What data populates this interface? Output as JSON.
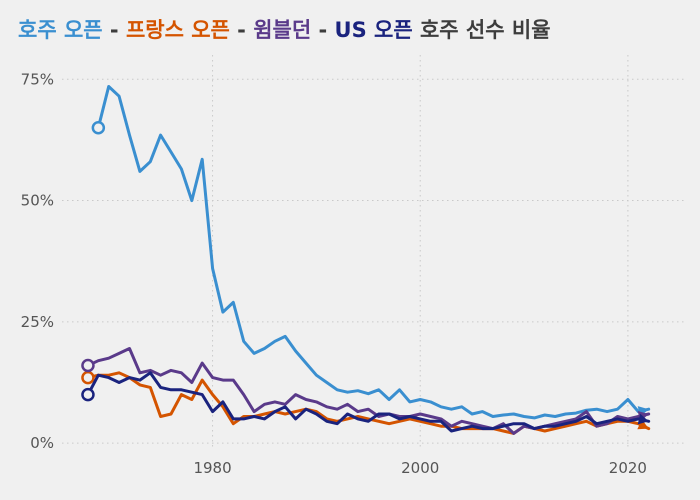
{
  "chart_data": {
    "type": "line",
    "title_parts": [
      {
        "text": "호주 오픈",
        "color": "#3a8fd0"
      },
      {
        "text": " - ",
        "color": "#3d3d3d"
      },
      {
        "text": "프랑스 오픈",
        "color": "#d45400"
      },
      {
        "text": " - ",
        "color": "#3d3d3d"
      },
      {
        "text": "윔블던",
        "color": "#5a3a8a"
      },
      {
        "text": " - ",
        "color": "#3d3d3d"
      },
      {
        "text": "US 오픈",
        "color": "#1a237e"
      },
      {
        "text": " 호주 선수 비율",
        "color": "#3d3d3d"
      }
    ],
    "xlim": [
      1965.5,
      2025.5
    ],
    "ylim": [
      -0.01,
      0.8
    ],
    "x_ticks": [
      {
        "value": 1980,
        "label": "1980"
      },
      {
        "value": 2000,
        "label": "2000"
      },
      {
        "value": 2020,
        "label": "2020"
      }
    ],
    "y_ticks": [
      {
        "value": 0,
        "label": "0%"
      },
      {
        "value": 0.25,
        "label": "25%"
      },
      {
        "value": 0.5,
        "label": "50%"
      },
      {
        "value": 0.75,
        "label": "75%"
      }
    ],
    "grid": true,
    "series": [
      {
        "color": "#3a8fd0",
        "x": [
          1969,
          1970,
          1971,
          1972,
          1973,
          1974,
          1975,
          1976,
          1977,
          1978,
          1979,
          1980,
          1981,
          1982,
          1983,
          1984,
          1985,
          1986,
          1987,
          1988,
          1989,
          1990,
          1991,
          1992,
          1993,
          1994,
          1995,
          1996,
          1997,
          1998,
          1999,
          2000,
          2001,
          2002,
          2003,
          2004,
          2005,
          2006,
          2007,
          2008,
          2009,
          2010,
          2011,
          2012,
          2013,
          2014,
          2015,
          2016,
          2017,
          2018,
          2019,
          2020,
          2021,
          2022
        ],
        "values": [
          0.65,
          0.735,
          0.715,
          0.635,
          0.56,
          0.58,
          0.635,
          0.6,
          0.565,
          0.5,
          0.585,
          0.36,
          0.27,
          0.29,
          0.21,
          0.185,
          0.195,
          0.21,
          0.22,
          0.19,
          0.165,
          0.14,
          0.125,
          0.11,
          0.105,
          0.108,
          0.102,
          0.11,
          0.09,
          0.11,
          0.085,
          0.09,
          0.085,
          0.075,
          0.07,
          0.075,
          0.06,
          0.065,
          0.055,
          0.058,
          0.06,
          0.055,
          0.052,
          0.058,
          0.055,
          0.06,
          0.062,
          0.068,
          0.07,
          0.065,
          0.07,
          0.09,
          0.065,
          0.07
        ]
      },
      {
        "color": "#d45400",
        "x": [
          1968,
          1969,
          1970,
          1971,
          1972,
          1973,
          1974,
          1975,
          1976,
          1977,
          1978,
          1979,
          1980,
          1981,
          1982,
          1983,
          1984,
          1985,
          1986,
          1987,
          1988,
          1989,
          1990,
          1991,
          1992,
          1993,
          1994,
          1995,
          1996,
          1997,
          1998,
          1999,
          2000,
          2001,
          2002,
          2003,
          2004,
          2005,
          2006,
          2007,
          2008,
          2009,
          2010,
          2011,
          2012,
          2013,
          2014,
          2015,
          2016,
          2017,
          2018,
          2019,
          2020,
          2021,
          2022
        ],
        "values": [
          0.135,
          0.14,
          0.14,
          0.145,
          0.135,
          0.12,
          0.115,
          0.055,
          0.06,
          0.1,
          0.09,
          0.13,
          0.1,
          0.075,
          0.04,
          0.055,
          0.055,
          0.06,
          0.065,
          0.06,
          0.065,
          0.07,
          0.065,
          0.05,
          0.045,
          0.05,
          0.055,
          0.05,
          0.045,
          0.04,
          0.045,
          0.05,
          0.045,
          0.04,
          0.035,
          0.035,
          0.03,
          0.03,
          0.03,
          0.03,
          0.025,
          0.02,
          0.035,
          0.03,
          0.025,
          0.03,
          0.035,
          0.04,
          0.045,
          0.035,
          0.04,
          0.045,
          0.045,
          0.04,
          0.03
        ]
      },
      {
        "color": "#5a3a8a",
        "x": [
          1968,
          1969,
          1970,
          1971,
          1972,
          1973,
          1974,
          1975,
          1976,
          1977,
          1978,
          1979,
          1980,
          1981,
          1982,
          1983,
          1984,
          1985,
          1986,
          1987,
          1988,
          1989,
          1990,
          1991,
          1992,
          1993,
          1994,
          1995,
          1996,
          1997,
          1998,
          1999,
          2000,
          2001,
          2002,
          2003,
          2004,
          2005,
          2006,
          2007,
          2008,
          2009,
          2010,
          2011,
          2012,
          2013,
          2014,
          2015,
          2016,
          2017,
          2018,
          2019,
          2020,
          2021,
          2022
        ],
        "values": [
          0.16,
          0.17,
          0.175,
          0.185,
          0.195,
          0.145,
          0.15,
          0.14,
          0.15,
          0.145,
          0.125,
          0.165,
          0.135,
          0.13,
          0.13,
          0.1,
          0.065,
          0.08,
          0.085,
          0.08,
          0.1,
          0.09,
          0.085,
          0.075,
          0.07,
          0.08,
          0.065,
          0.07,
          0.055,
          0.06,
          0.055,
          0.055,
          0.06,
          0.055,
          0.05,
          0.035,
          0.045,
          0.04,
          0.035,
          0.03,
          0.04,
          0.02,
          0.035,
          0.03,
          0.035,
          0.04,
          0.045,
          0.05,
          0.065,
          0.035,
          0.04,
          0.055,
          0.05,
          0.055,
          0.06
        ]
      },
      {
        "color": "#1a237e",
        "x": [
          1968,
          1969,
          1970,
          1971,
          1972,
          1973,
          1974,
          1975,
          1976,
          1977,
          1978,
          1979,
          1980,
          1981,
          1982,
          1983,
          1984,
          1985,
          1986,
          1987,
          1988,
          1989,
          1990,
          1991,
          1992,
          1993,
          1994,
          1995,
          1996,
          1997,
          1998,
          1999,
          2000,
          2001,
          2002,
          2003,
          2004,
          2005,
          2006,
          2007,
          2008,
          2009,
          2010,
          2011,
          2012,
          2013,
          2014,
          2015,
          2016,
          2017,
          2018,
          2019,
          2020,
          2021,
          2022
        ],
        "values": [
          0.1,
          0.14,
          0.135,
          0.125,
          0.135,
          0.13,
          0.145,
          0.115,
          0.11,
          0.11,
          0.105,
          0.1,
          0.065,
          0.085,
          0.05,
          0.05,
          0.055,
          0.05,
          0.065,
          0.075,
          0.05,
          0.07,
          0.06,
          0.045,
          0.04,
          0.06,
          0.05,
          0.045,
          0.06,
          0.06,
          0.05,
          0.055,
          0.05,
          0.045,
          0.045,
          0.025,
          0.03,
          0.035,
          0.03,
          0.03,
          0.035,
          0.04,
          0.04,
          0.03,
          0.035,
          0.035,
          0.04,
          0.045,
          0.055,
          0.04,
          0.045,
          0.05,
          0.045,
          0.05,
          0.045
        ]
      }
    ]
  }
}
